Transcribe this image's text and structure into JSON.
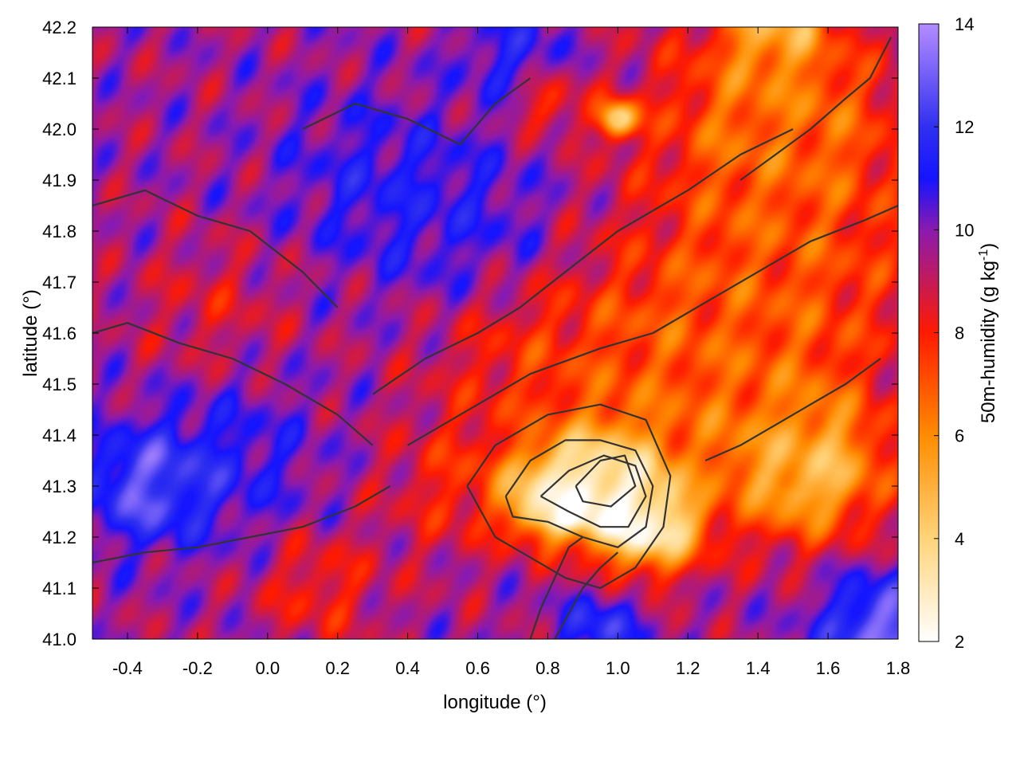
{
  "chart_data": {
    "type": "heatmap",
    "title": "",
    "xlabel": "longitude (°)",
    "ylabel": "latitude (°)",
    "colorbar_label": {
      "text": "50m-humidity (g kg",
      "superscript": "-1",
      "close": ")"
    },
    "xlim": [
      -0.5,
      1.8
    ],
    "ylim": [
      41.0,
      42.2
    ],
    "x_ticks": [
      "-0.4",
      "-0.2",
      "0.0",
      "0.2",
      "0.4",
      "0.6",
      "0.8",
      "1.0",
      "1.2",
      "1.4",
      "1.6",
      "1.8"
    ],
    "x_tick_values": [
      -0.4,
      -0.2,
      0.0,
      0.2,
      0.4,
      0.6,
      0.8,
      1.0,
      1.2,
      1.4,
      1.6,
      1.8
    ],
    "y_ticks": [
      "41.0",
      "41.1",
      "41.2",
      "41.3",
      "41.4",
      "41.5",
      "41.6",
      "41.7",
      "41.8",
      "41.9",
      "42.0",
      "42.1",
      "42.2"
    ],
    "y_tick_values": [
      41.0,
      41.1,
      41.2,
      41.3,
      41.4,
      41.5,
      41.6,
      41.7,
      41.8,
      41.9,
      42.0,
      42.1,
      42.2
    ],
    "colorbar_range": [
      2,
      14
    ],
    "colorbar_ticks": [
      "2",
      "4",
      "6",
      "8",
      "10",
      "12",
      "14"
    ],
    "colorbar_tick_values": [
      2,
      4,
      6,
      8,
      10,
      12,
      14
    ],
    "colormap": [
      {
        "value": 2,
        "color": "#ffffff"
      },
      {
        "value": 4,
        "color": "#ffd47a"
      },
      {
        "value": 6,
        "color": "#ff8c00"
      },
      {
        "value": 8,
        "color": "#ff1a00"
      },
      {
        "value": 10,
        "color": "#8a1ab0"
      },
      {
        "value": 11,
        "color": "#1414ff"
      },
      {
        "value": 12,
        "color": "#3030f0"
      },
      {
        "value": 14,
        "color": "#b48cff"
      }
    ],
    "contour_color": "#333333",
    "grid": false,
    "humidity_field": {
      "background": 9.6,
      "features": [
        {
          "lon": 0.95,
          "lat": 41.3,
          "value": 2.3,
          "spread": 0.12
        },
        {
          "lon": 0.8,
          "lat": 41.28,
          "value": 3.0,
          "spread": 0.08
        },
        {
          "lon": 1.1,
          "lat": 41.22,
          "value": 3.6,
          "spread": 0.1
        },
        {
          "lon": 1.55,
          "lat": 41.33,
          "value": 5.0,
          "spread": 0.15
        },
        {
          "lon": 1.5,
          "lat": 41.75,
          "value": 7.6,
          "spread": 0.35
        },
        {
          "lon": 1.45,
          "lat": 42.05,
          "value": 6.8,
          "spread": 0.22
        },
        {
          "lon": 1.25,
          "lat": 41.5,
          "value": 7.2,
          "spread": 0.25
        },
        {
          "lon": 0.75,
          "lat": 41.55,
          "value": 8.0,
          "spread": 0.2
        },
        {
          "lon": 0.55,
          "lat": 41.3,
          "value": 8.0,
          "spread": 0.15
        },
        {
          "lon": 0.15,
          "lat": 41.1,
          "value": 8.0,
          "spread": 0.12
        },
        {
          "lon": 1.0,
          "lat": 42.02,
          "value": 4.0,
          "spread": 0.04
        },
        {
          "lon": 0.8,
          "lat": 42.05,
          "value": 7.5,
          "spread": 0.06
        },
        {
          "lon": -0.15,
          "lat": 41.65,
          "value": 8.6,
          "spread": 0.15
        },
        {
          "lon": -0.35,
          "lat": 41.3,
          "value": 12.6,
          "spread": 0.12
        },
        {
          "lon": 0.3,
          "lat": 41.9,
          "value": 10.8,
          "spread": 0.2
        },
        {
          "lon": 0.6,
          "lat": 41.8,
          "value": 10.8,
          "spread": 0.18
        },
        {
          "lon": -0.1,
          "lat": 41.35,
          "value": 10.9,
          "spread": 0.18
        },
        {
          "lon": 1.75,
          "lat": 41.02,
          "value": 13.2,
          "spread": 0.12
        },
        {
          "lon": 0.95,
          "lat": 41.02,
          "value": 12.0,
          "spread": 0.08
        },
        {
          "lon": 0.7,
          "lat": 42.15,
          "value": 11.2,
          "spread": 0.1
        },
        {
          "lon": 1.45,
          "lat": 42.2,
          "value": 5.0,
          "spread": 0.08
        }
      ]
    },
    "contour_levels": [
      {
        "lon": [
          0.68,
          0.75,
          0.85,
          0.95,
          1.05,
          1.1,
          1.08,
          1.0,
          0.9,
          0.8,
          0.7,
          0.68
        ],
        "lat": [
          41.28,
          41.35,
          41.39,
          41.39,
          41.37,
          41.3,
          41.22,
          41.18,
          41.2,
          41.23,
          41.24,
          41.28
        ]
      },
      {
        "lon": [
          0.78,
          0.86,
          0.96,
          1.05,
          1.08,
          1.03,
          0.95,
          0.86,
          0.78
        ],
        "lat": [
          41.28,
          41.33,
          41.36,
          41.34,
          41.28,
          41.22,
          41.22,
          41.25,
          41.28
        ]
      },
      {
        "lon": [
          0.88,
          0.95,
          1.02,
          1.05,
          0.98,
          0.9,
          0.88
        ],
        "lat": [
          41.3,
          41.35,
          41.36,
          41.3,
          41.26,
          41.27,
          41.3
        ]
      },
      {
        "lon": [
          0.57,
          0.65,
          0.8,
          0.95,
          1.08,
          1.15,
          1.13,
          1.05,
          0.95,
          0.85,
          0.75,
          0.65,
          0.57
        ],
        "lat": [
          41.3,
          41.38,
          41.44,
          41.46,
          41.43,
          41.32,
          41.22,
          41.14,
          41.1,
          41.12,
          41.16,
          41.2,
          41.3
        ]
      },
      {
        "lon": [
          0.4,
          0.55,
          0.75,
          0.95,
          1.1,
          1.25,
          1.4,
          1.55,
          1.7,
          1.8
        ],
        "lat": [
          41.38,
          41.44,
          41.52,
          41.57,
          41.6,
          41.66,
          41.72,
          41.78,
          41.82,
          41.85
        ]
      },
      {
        "lon": [
          0.3,
          0.45,
          0.6,
          0.72,
          0.85,
          1.0,
          1.2,
          1.35,
          1.5
        ],
        "lat": [
          41.48,
          41.55,
          41.6,
          41.65,
          41.72,
          41.8,
          41.88,
          41.95,
          42.0
        ]
      },
      {
        "lon": [
          -0.5,
          -0.35,
          -0.2,
          -0.05,
          0.1,
          0.25,
          0.35
        ],
        "lat": [
          41.15,
          41.17,
          41.18,
          41.2,
          41.22,
          41.26,
          41.3
        ]
      },
      {
        "lon": [
          -0.5,
          -0.4,
          -0.25,
          -0.1,
          0.05,
          0.2,
          0.3
        ],
        "lat": [
          41.6,
          41.62,
          41.58,
          41.55,
          41.5,
          41.44,
          41.38
        ]
      },
      {
        "lon": [
          -0.5,
          -0.35,
          -0.2,
          -0.05,
          0.1,
          0.2
        ],
        "lat": [
          41.85,
          41.88,
          41.83,
          41.8,
          41.72,
          41.65
        ]
      },
      {
        "lon": [
          0.1,
          0.25,
          0.4,
          0.55,
          0.65,
          0.75
        ],
        "lat": [
          42.0,
          42.05,
          42.02,
          41.97,
          42.05,
          42.1
        ]
      },
      {
        "lon": [
          1.25,
          1.35,
          1.45,
          1.55,
          1.65,
          1.75
        ],
        "lat": [
          41.35,
          41.38,
          41.42,
          41.46,
          41.5,
          41.55
        ]
      },
      {
        "lon": [
          0.75,
          0.78,
          0.82,
          0.86,
          0.9
        ],
        "lat": [
          41.0,
          41.06,
          41.12,
          41.18,
          41.2
        ]
      },
      {
        "lon": [
          0.82,
          0.86,
          0.9,
          0.95,
          1.0
        ],
        "lat": [
          41.0,
          41.05,
          41.1,
          41.14,
          41.17
        ]
      },
      {
        "lon": [
          1.35,
          1.45,
          1.55,
          1.65,
          1.72,
          1.78
        ],
        "lat": [
          41.9,
          41.95,
          42.0,
          42.06,
          42.1,
          42.18
        ]
      }
    ]
  }
}
